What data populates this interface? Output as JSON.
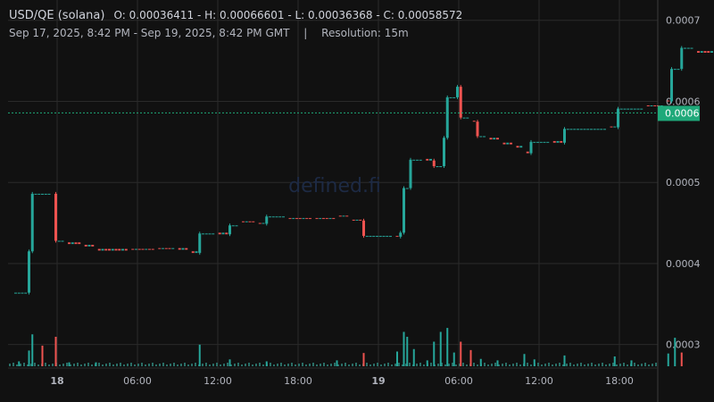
{
  "header": {
    "symbol": "USD/QE (solana)",
    "ohlc": "O: 0.00036411 - H: 0.00066601 - L: 0.00036368 - C: 0.00058572",
    "range": "Sep 17, 2025, 8:42 PM - Sep 19, 2025, 8:42 PM GMT",
    "separator": "|",
    "resolution": "Resolution: 15m"
  },
  "watermark": "defined.fi",
  "price_tag": "0.0006",
  "colors": {
    "background": "#111111",
    "grid": "#2a2a2a",
    "up": "#26a69a",
    "down": "#ef5350",
    "last_price_tag": "#1fa97a"
  },
  "chart_data": {
    "type": "candlestick",
    "resolution": "15m",
    "x_tick_labels": [
      "18",
      "06:00",
      "12:00",
      "18:00",
      "19",
      "06:00",
      "12:00",
      "18:00"
    ],
    "y_tick_labels": [
      "0.0007",
      "0.0006",
      "0.0005",
      "0.0004",
      "0.0003"
    ],
    "ylim": [
      0.000271,
      0.000714
    ],
    "grid": true,
    "last_price": 0.00058572,
    "price_path": [
      [
        0,
        0.000365,
        "h",
        0.00037
      ],
      [
        0.25,
        0.000364,
        "h",
        0.000364
      ],
      [
        1.5,
        0.000415,
        "j"
      ],
      [
        1.75,
        0.000486,
        "j"
      ],
      [
        3.25,
        0.000486,
        "h",
        0.000487
      ],
      [
        3.5,
        0.000428,
        "j"
      ],
      [
        4.25,
        0.000424,
        "h",
        0.000426
      ],
      [
        5.5,
        0.000421,
        "h",
        0.000423
      ],
      [
        6.5,
        0.000416,
        "h",
        0.000418
      ],
      [
        9.0,
        0.000417,
        "h",
        0.000418
      ],
      [
        11.0,
        0.000418,
        "h",
        0.000419
      ],
      [
        12.5,
        0.000417,
        "h",
        0.000419
      ],
      [
        13.5,
        0.000413,
        "h",
        0.000415
      ],
      [
        14.25,
        0.000437,
        "j"
      ],
      [
        15.5,
        0.000436,
        "h",
        0.000438
      ],
      [
        16.5,
        0.000447,
        "j"
      ],
      [
        17.25,
        0.000451,
        "h",
        0.000452
      ],
      [
        18.5,
        0.000449,
        "h",
        0.00045
      ],
      [
        19.25,
        0.000458,
        "j"
      ],
      [
        20.75,
        0.000455,
        "h",
        0.000456
      ],
      [
        22.75,
        0.000455,
        "h",
        0.000456
      ],
      [
        24.5,
        0.000458,
        "h",
        0.000459
      ],
      [
        25.5,
        0.000453,
        "h",
        0.000454
      ],
      [
        26.5,
        0.000434,
        "j"
      ],
      [
        28.75,
        0.000433,
        "h",
        0.000434
      ],
      [
        29.25,
        0.000438,
        "j"
      ],
      [
        29.5,
        0.000493,
        "j"
      ],
      [
        30.0,
        0.000528,
        "j"
      ],
      [
        31.0,
        0.000527,
        "h",
        0.000529
      ],
      [
        31.75,
        0.00052,
        "j"
      ],
      [
        32.5,
        0.000555,
        "j"
      ],
      [
        32.75,
        0.000605,
        "j"
      ],
      [
        33.5,
        0.000618,
        "j"
      ],
      [
        33.75,
        0.00058,
        "j"
      ],
      [
        34.5,
        0.000575,
        "h",
        0.000576
      ],
      [
        35.0,
        0.000557,
        "j"
      ],
      [
        35.75,
        0.000553,
        "h",
        0.000555
      ],
      [
        36.75,
        0.000547,
        "h",
        0.000549
      ],
      [
        37.75,
        0.000543,
        "h",
        0.000545
      ],
      [
        38.5,
        0.000536,
        "h",
        0.000538
      ],
      [
        39.0,
        0.00055,
        "j"
      ],
      [
        40.5,
        0.000549,
        "h",
        0.000551
      ],
      [
        41.5,
        0.000566,
        "j"
      ],
      [
        44.75,
        0.000568,
        "h",
        0.000569
      ],
      [
        45.5,
        0.000591,
        "j"
      ],
      [
        47.5,
        0.000594,
        "h",
        0.000595
      ],
      [
        49.0,
        0.0006,
        "h",
        0.000601
      ],
      [
        49.5,
        0.00064,
        "j"
      ],
      [
        50.25,
        0.000666,
        "j"
      ],
      [
        51.25,
        0.00066,
        "h",
        0.000662
      ],
      [
        52.75,
        0.000654,
        "h",
        0.000655
      ],
      [
        53.5,
        0.00065,
        "h",
        0.000651
      ],
      [
        54.5,
        0.000577,
        "j"
      ],
      [
        57.0,
        0.000577,
        "h",
        0.000578
      ],
      [
        57.25,
        0.000582,
        "j"
      ],
      [
        57.75,
        0.000573,
        "h",
        0.000575
      ],
      [
        58.5,
        0.000584,
        "h",
        0.000585
      ],
      [
        61.0,
        0.000584,
        "h",
        0.000586
      ],
      [
        65.0,
        0.000585,
        "h",
        0.000586
      ],
      [
        65.75,
        0.000587,
        "h",
        0.000588
      ]
    ],
    "volume_spikes": [
      [
        0.75,
        0.1
      ],
      [
        1.5,
        0.32
      ],
      [
        1.75,
        0.65
      ],
      [
        2.5,
        0.42
      ],
      [
        3.5,
        0.6
      ],
      [
        4.5,
        0.08
      ],
      [
        6.5,
        0.08
      ],
      [
        14.25,
        0.44
      ],
      [
        16.5,
        0.14
      ],
      [
        19.25,
        0.1
      ],
      [
        24.5,
        0.12
      ],
      [
        26.5,
        0.27
      ],
      [
        29.0,
        0.3
      ],
      [
        29.5,
        0.7
      ],
      [
        29.75,
        0.6
      ],
      [
        30.25,
        0.35
      ],
      [
        31.25,
        0.12
      ],
      [
        31.75,
        0.5
      ],
      [
        32.25,
        0.7
      ],
      [
        32.75,
        0.78
      ],
      [
        33.25,
        0.28
      ],
      [
        33.75,
        0.5
      ],
      [
        34.5,
        0.33
      ],
      [
        35.25,
        0.15
      ],
      [
        36.5,
        0.12
      ],
      [
        38.5,
        0.25
      ],
      [
        39.25,
        0.14
      ],
      [
        41.5,
        0.22
      ],
      [
        45.25,
        0.2
      ],
      [
        46.5,
        0.12
      ],
      [
        49.25,
        0.26
      ],
      [
        49.75,
        0.58
      ],
      [
        50.25,
        0.28
      ],
      [
        54.5,
        1.0
      ],
      [
        57.25,
        0.08
      ],
      [
        60.5,
        0.07
      ]
    ]
  }
}
